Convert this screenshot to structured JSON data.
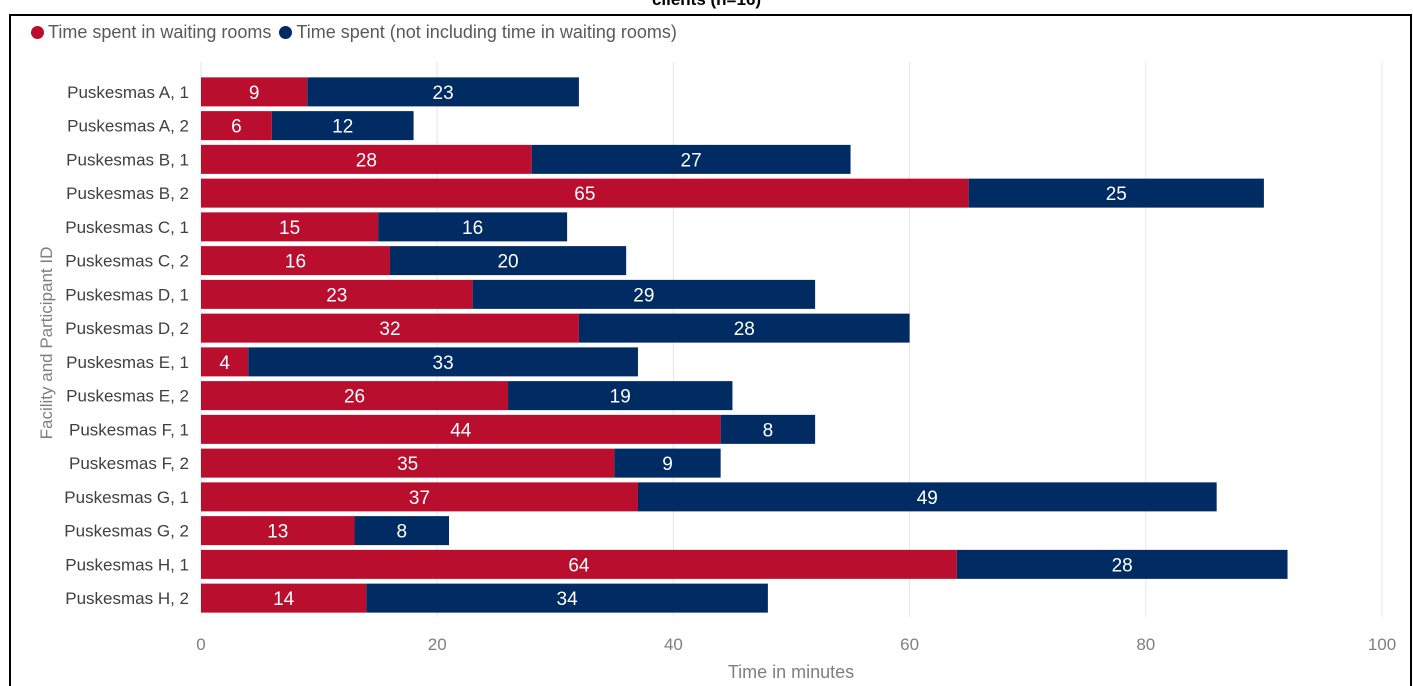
{
  "title": "clients (n=16)",
  "chart_data": {
    "type": "bar",
    "orientation": "horizontal",
    "stacked": true,
    "categories": [
      "Puskesmas A, 1",
      "Puskesmas A, 2",
      "Puskesmas B, 1",
      "Puskesmas B, 2",
      "Puskesmas C, 1",
      "Puskesmas C, 2",
      "Puskesmas D, 1",
      "Puskesmas D, 2",
      "Puskesmas E, 1",
      "Puskesmas E, 2",
      "Puskesmas F, 1",
      "Puskesmas F, 2",
      "Puskesmas G, 1",
      "Puskesmas G, 2",
      "Puskesmas H, 1",
      "Puskesmas H, 2"
    ],
    "series": [
      {
        "name": "Time spent in waiting rooms",
        "color": "#b90e2e",
        "values": [
          9,
          6,
          28,
          65,
          15,
          16,
          23,
          32,
          4,
          26,
          44,
          35,
          37,
          13,
          64,
          14
        ]
      },
      {
        "name": "Time spent (not including time in waiting rooms)",
        "color": "#002b63",
        "values": [
          23,
          12,
          27,
          25,
          16,
          20,
          29,
          28,
          33,
          19,
          8,
          9,
          49,
          8,
          28,
          34
        ]
      }
    ],
    "xlabel": "Time in minutes",
    "ylabel": "Facility and Participant ID",
    "xlim": [
      0,
      100
    ],
    "xticks": [
      0,
      20,
      40,
      60,
      80,
      100
    ],
    "grid": "vertical",
    "legend_position": "top-left",
    "data_labels": true
  }
}
